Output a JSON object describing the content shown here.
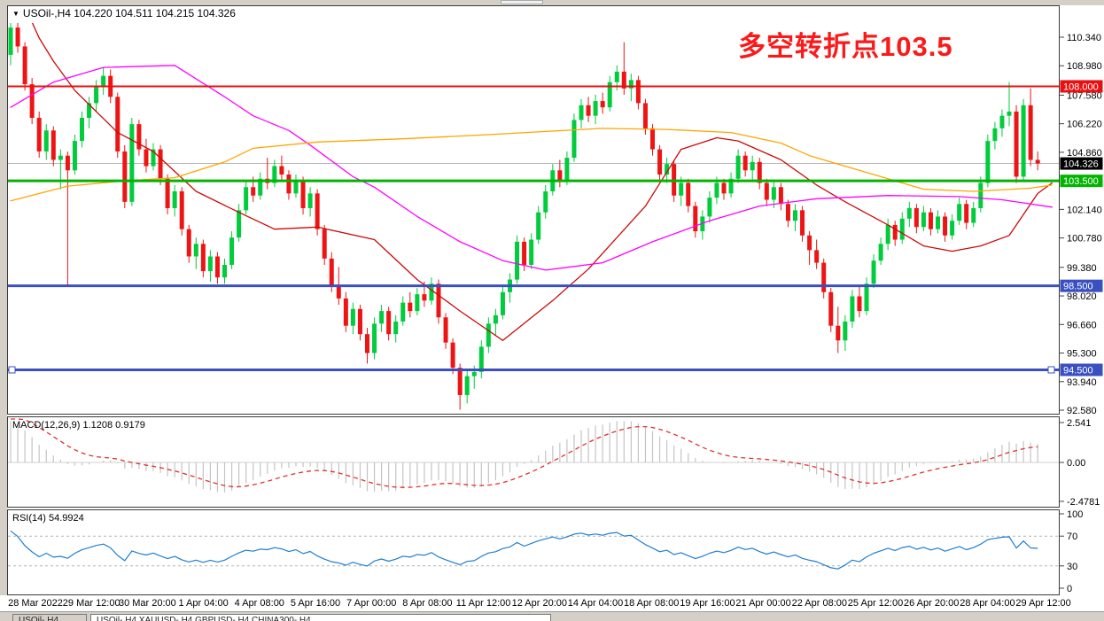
{
  "window": {
    "tabs": [
      {
        "label": "USOil-,H4",
        "active": false
      },
      {
        "label": "USOil-,H4   XAUUSD-,H4   GBPUSD-,H4   CHINA300-,H4",
        "active": true
      }
    ]
  },
  "chart": {
    "title": "USOil-,H4  104.220 104.511 104.215 104.326",
    "annotation": {
      "text": "多空转折点103.5",
      "color": "#fb1a1a"
    }
  },
  "chart_data": {
    "type": "candlestick",
    "symbol": "USOil-",
    "timeframe": "H4",
    "ohlc_display": {
      "open": "104.220",
      "high": "104.511",
      "low": "104.215",
      "close": "104.326"
    },
    "price_axis": {
      "ticks": [
        "110.340",
        "108.980",
        "107.580",
        "106.220",
        "104.860",
        "102.140",
        "100.780",
        "99.380",
        "98.020",
        "96.660",
        "95.300",
        "93.940",
        "92.580"
      ],
      "min": 92.24,
      "max": 110.94
    },
    "x_axis": {
      "labels": [
        "28 Mar 2022",
        "29 Mar 12:00",
        "30 Mar 20:00",
        "1 Apr 04:00",
        "4 Apr 08:00",
        "5 Apr 16:00",
        "7 Apr 00:00",
        "8 Apr 08:00",
        "11 Apr 12:00",
        "12 Apr 20:00",
        "14 Apr 04:00",
        "18 Apr 08:00",
        "19 Apr 16:00",
        "21 Apr 00:00",
        "22 Apr 08:00",
        "25 Apr 12:00",
        "26 Apr 20:00",
        "28 Apr 04:00",
        "29 Apr 12:00"
      ]
    },
    "hlines": [
      {
        "value": 108.0,
        "label": "108.000",
        "color": "#e81010",
        "width": 2,
        "selected": false
      },
      {
        "value": 103.5,
        "label": "103.500",
        "color": "#00b400",
        "width": 3,
        "selected": false
      },
      {
        "value": 98.5,
        "label": "98.500",
        "color": "#3a50c2",
        "width": 3,
        "selected": false
      },
      {
        "value": 94.5,
        "label": "94.500",
        "color": "#3a50c2",
        "width": 3,
        "selected": true
      }
    ],
    "current_price": {
      "value": 104.326,
      "label": "104.326",
      "line_color": "#b8b8b8",
      "badge_color": "#000000"
    },
    "style": {
      "bull": "#00cc3c",
      "bear": "#ee1414"
    },
    "candles": [
      [
        109.5,
        112.4,
        109.0,
        110.8
      ],
      [
        110.8,
        111.6,
        109.6,
        109.9
      ],
      [
        109.9,
        110.1,
        107.8,
        108.1
      ],
      [
        108.1,
        108.4,
        106.2,
        106.5
      ],
      [
        106.5,
        106.8,
        104.6,
        104.9
      ],
      [
        104.9,
        106.2,
        104.5,
        105.9
      ],
      [
        105.9,
        106.1,
        104.2,
        104.5
      ],
      [
        104.5,
        105.0,
        103.1,
        104.7
      ],
      [
        104.7,
        104.9,
        98.5,
        104.0
      ],
      [
        104.0,
        105.7,
        103.8,
        105.4
      ],
      [
        105.4,
        106.8,
        105.1,
        106.5
      ],
      [
        106.5,
        107.5,
        106.0,
        107.2
      ],
      [
        107.2,
        108.3,
        106.8,
        108.0
      ],
      [
        108.0,
        108.9,
        107.6,
        108.5
      ],
      [
        108.5,
        108.8,
        107.2,
        107.5
      ],
      [
        107.5,
        107.7,
        104.6,
        104.9
      ],
      [
        104.9,
        105.2,
        102.2,
        102.5
      ],
      [
        102.5,
        106.5,
        102.3,
        106.2
      ],
      [
        106.2,
        106.4,
        104.7,
        105.0
      ],
      [
        105.0,
        105.5,
        103.9,
        104.2
      ],
      [
        104.2,
        105.3,
        104.0,
        105.0
      ],
      [
        105.0,
        105.2,
        103.3,
        103.6
      ],
      [
        103.6,
        103.8,
        101.9,
        102.2
      ],
      [
        102.2,
        103.3,
        101.8,
        103.0
      ],
      [
        103.0,
        103.2,
        100.9,
        101.2
      ],
      [
        101.2,
        101.4,
        99.6,
        99.9
      ],
      [
        99.9,
        100.8,
        99.3,
        100.5
      ],
      [
        100.5,
        100.7,
        98.9,
        99.2
      ],
      [
        99.2,
        100.2,
        98.7,
        99.9
      ],
      [
        99.9,
        100.1,
        98.6,
        98.9
      ],
      [
        98.9,
        99.8,
        98.6,
        99.5
      ],
      [
        99.5,
        101.1,
        99.3,
        100.8
      ],
      [
        100.8,
        102.4,
        100.6,
        102.1
      ],
      [
        102.1,
        103.5,
        101.9,
        103.2
      ],
      [
        103.2,
        103.7,
        102.5,
        102.8
      ],
      [
        102.8,
        103.9,
        102.6,
        103.6
      ],
      [
        103.6,
        104.6,
        103.1,
        103.4
      ],
      [
        103.4,
        104.5,
        103.2,
        104.2
      ],
      [
        104.2,
        104.7,
        103.5,
        103.8
      ],
      [
        103.8,
        104.0,
        102.6,
        102.9
      ],
      [
        102.9,
        103.8,
        102.7,
        103.5
      ],
      [
        103.5,
        103.7,
        101.9,
        102.2
      ],
      [
        102.2,
        103.2,
        101.8,
        102.9
      ],
      [
        102.9,
        103.1,
        100.9,
        101.2
      ],
      [
        101.2,
        101.4,
        99.5,
        99.8
      ],
      [
        99.8,
        100.1,
        98.2,
        98.5
      ],
      [
        98.5,
        99.4,
        97.6,
        97.9
      ],
      [
        97.9,
        98.2,
        96.3,
        96.6
      ],
      [
        96.6,
        97.7,
        96.2,
        97.4
      ],
      [
        97.4,
        97.6,
        95.9,
        96.2
      ],
      [
        96.2,
        96.5,
        94.8,
        95.3
      ],
      [
        95.3,
        97.0,
        95.0,
        96.7
      ],
      [
        96.7,
        97.6,
        96.3,
        97.3
      ],
      [
        97.3,
        97.5,
        95.9,
        96.2
      ],
      [
        96.2,
        97.1,
        95.8,
        96.8
      ],
      [
        96.8,
        98.0,
        96.6,
        97.7
      ],
      [
        97.7,
        98.2,
        97.0,
        97.3
      ],
      [
        97.3,
        98.4,
        97.1,
        98.1
      ],
      [
        98.1,
        98.7,
        97.5,
        97.8
      ],
      [
        97.8,
        98.9,
        97.6,
        98.6
      ],
      [
        98.6,
        98.8,
        96.7,
        97.0
      ],
      [
        97.0,
        97.2,
        95.5,
        95.8
      ],
      [
        95.8,
        96.0,
        94.3,
        94.6
      ],
      [
        94.6,
        94.8,
        92.6,
        93.3
      ],
      [
        93.3,
        94.5,
        92.9,
        94.2
      ],
      [
        94.2,
        94.7,
        93.6,
        94.4
      ],
      [
        94.4,
        95.9,
        94.1,
        95.6
      ],
      [
        95.6,
        97.0,
        95.3,
        96.7
      ],
      [
        96.7,
        97.4,
        96.1,
        97.1
      ],
      [
        97.1,
        98.5,
        96.9,
        98.2
      ],
      [
        98.2,
        99.1,
        97.7,
        98.8
      ],
      [
        98.8,
        100.9,
        98.6,
        100.6
      ],
      [
        100.6,
        100.8,
        99.2,
        99.5
      ],
      [
        99.5,
        101.0,
        99.3,
        100.7
      ],
      [
        100.7,
        102.3,
        100.5,
        102.0
      ],
      [
        102.0,
        103.3,
        101.7,
        103.0
      ],
      [
        103.0,
        104.3,
        102.8,
        104.0
      ],
      [
        104.0,
        104.5,
        103.2,
        103.5
      ],
      [
        103.5,
        104.9,
        103.3,
        104.6
      ],
      [
        104.6,
        106.7,
        104.4,
        106.4
      ],
      [
        106.4,
        107.4,
        106.0,
        107.1
      ],
      [
        107.1,
        107.5,
        106.3,
        106.6
      ],
      [
        106.6,
        107.6,
        106.2,
        107.3
      ],
      [
        107.3,
        107.7,
        106.7,
        107.0
      ],
      [
        107.0,
        108.5,
        106.8,
        108.2
      ],
      [
        108.2,
        109.0,
        107.8,
        108.7
      ],
      [
        108.7,
        110.1,
        107.6,
        107.9
      ],
      [
        107.9,
        108.6,
        107.3,
        108.3
      ],
      [
        108.3,
        108.5,
        106.9,
        107.2
      ],
      [
        107.2,
        107.4,
        105.7,
        106.0
      ],
      [
        106.0,
        106.2,
        104.7,
        105.0
      ],
      [
        105.0,
        105.2,
        103.5,
        103.8
      ],
      [
        103.8,
        104.6,
        103.4,
        104.3
      ],
      [
        104.3,
        104.5,
        102.5,
        102.8
      ],
      [
        102.8,
        103.7,
        102.3,
        103.4
      ],
      [
        103.4,
        103.6,
        102.0,
        102.3
      ],
      [
        102.3,
        102.5,
        100.8,
        101.1
      ],
      [
        101.1,
        102.1,
        100.7,
        101.8
      ],
      [
        101.8,
        103.0,
        101.5,
        102.7
      ],
      [
        102.7,
        103.7,
        102.4,
        103.4
      ],
      [
        103.4,
        103.6,
        102.6,
        102.9
      ],
      [
        102.9,
        103.9,
        102.7,
        103.6
      ],
      [
        103.6,
        105.0,
        103.4,
        104.7
      ],
      [
        104.7,
        104.9,
        103.7,
        104.0
      ],
      [
        104.0,
        104.7,
        103.5,
        104.4
      ],
      [
        104.4,
        104.6,
        103.1,
        103.4
      ],
      [
        103.4,
        103.6,
        102.3,
        102.6
      ],
      [
        102.6,
        103.5,
        102.2,
        103.2
      ],
      [
        103.2,
        103.4,
        102.1,
        102.4
      ],
      [
        102.4,
        102.6,
        101.3,
        101.6
      ],
      [
        101.6,
        102.4,
        101.1,
        102.1
      ],
      [
        102.1,
        102.3,
        100.6,
        100.9
      ],
      [
        100.9,
        101.1,
        99.5,
        100.2
      ],
      [
        100.2,
        100.7,
        99.3,
        99.6
      ],
      [
        99.6,
        99.8,
        97.9,
        98.2
      ],
      [
        98.2,
        98.4,
        96.3,
        96.6
      ],
      [
        96.6,
        97.5,
        95.3,
        95.9
      ],
      [
        95.9,
        97.1,
        95.4,
        96.8
      ],
      [
        96.8,
        98.3,
        96.5,
        98.0
      ],
      [
        98.0,
        98.5,
        97.0,
        97.3
      ],
      [
        97.3,
        98.9,
        97.1,
        98.6
      ],
      [
        98.6,
        100.0,
        98.4,
        99.7
      ],
      [
        99.7,
        100.8,
        99.5,
        100.5
      ],
      [
        100.5,
        101.7,
        100.2,
        101.4
      ],
      [
        101.4,
        101.6,
        100.4,
        100.7
      ],
      [
        100.7,
        102.0,
        100.5,
        101.7
      ],
      [
        101.7,
        102.5,
        101.3,
        102.2
      ],
      [
        102.2,
        102.4,
        101.0,
        101.3
      ],
      [
        101.3,
        102.3,
        101.1,
        102.0
      ],
      [
        102.0,
        102.2,
        100.9,
        101.2
      ],
      [
        101.2,
        102.1,
        101.0,
        101.8
      ],
      [
        101.8,
        102.0,
        100.6,
        100.9
      ],
      [
        100.9,
        101.9,
        100.7,
        101.6
      ],
      [
        101.6,
        102.7,
        101.4,
        102.4
      ],
      [
        102.4,
        102.6,
        101.2,
        101.5
      ],
      [
        101.5,
        102.5,
        101.3,
        102.2
      ],
      [
        102.2,
        103.7,
        102.0,
        103.4
      ],
      [
        103.4,
        105.7,
        103.2,
        105.4
      ],
      [
        105.4,
        106.3,
        105.0,
        106.0
      ],
      [
        106.0,
        106.9,
        105.6,
        106.6
      ],
      [
        106.6,
        108.2,
        106.1,
        106.8
      ],
      [
        106.8,
        107.1,
        103.4,
        103.7
      ],
      [
        103.7,
        107.4,
        103.5,
        107.1
      ],
      [
        107.1,
        107.9,
        104.2,
        104.5
      ],
      [
        104.5,
        104.9,
        104.0,
        104.326
      ]
    ],
    "ma_lines": [
      {
        "name": "fast-ma-red",
        "color": "#cc0a0a",
        "points": [
          [
            0,
            113.5
          ],
          [
            2,
            111.8
          ],
          [
            4,
            110.3
          ],
          [
            6,
            109.2
          ],
          [
            9,
            107.8
          ],
          [
            12,
            106.8
          ],
          [
            15,
            105.8
          ],
          [
            20,
            104.9
          ],
          [
            26,
            103.0
          ],
          [
            32,
            102.0
          ],
          [
            37,
            101.2
          ],
          [
            43,
            101.3
          ],
          [
            51,
            100.7
          ],
          [
            57,
            98.8
          ],
          [
            63,
            97.3
          ],
          [
            69,
            95.9
          ],
          [
            76,
            97.8
          ],
          [
            81,
            99.3
          ],
          [
            89,
            102.3
          ],
          [
            94,
            105.0
          ],
          [
            99,
            105.55
          ],
          [
            102,
            105.4
          ],
          [
            108,
            104.5
          ],
          [
            113,
            103.3
          ],
          [
            117,
            102.5
          ],
          [
            123,
            101.4
          ],
          [
            128,
            100.4
          ],
          [
            132,
            100.15
          ],
          [
            136,
            100.4
          ],
          [
            140,
            100.9
          ],
          [
            144,
            102.9
          ],
          [
            146,
            103.4
          ]
        ]
      },
      {
        "name": "mid-ma-magenta",
        "color": "#ff00ff",
        "points": [
          [
            0,
            107.0
          ],
          [
            6,
            108.2
          ],
          [
            13,
            108.9
          ],
          [
            23,
            109.0
          ],
          [
            30,
            107.5
          ],
          [
            34,
            106.6
          ],
          [
            39,
            105.9
          ],
          [
            42,
            105.2
          ],
          [
            48,
            103.7
          ],
          [
            51,
            103.2
          ],
          [
            57,
            101.8
          ],
          [
            63,
            100.6
          ],
          [
            69,
            99.7
          ],
          [
            75,
            99.25
          ],
          [
            83,
            99.6
          ],
          [
            90,
            100.6
          ],
          [
            98,
            101.6
          ],
          [
            105,
            102.3
          ],
          [
            113,
            102.65
          ],
          [
            123,
            102.8
          ],
          [
            133,
            102.75
          ],
          [
            139,
            102.6
          ],
          [
            146,
            102.25
          ]
        ]
      },
      {
        "name": "slow-ma-orange",
        "color": "#ffa500",
        "points": [
          [
            0,
            102.55
          ],
          [
            8,
            103.25
          ],
          [
            16,
            103.5
          ],
          [
            23,
            103.65
          ],
          [
            30,
            104.4
          ],
          [
            34,
            105.05
          ],
          [
            43,
            105.35
          ],
          [
            55,
            105.5
          ],
          [
            67,
            105.7
          ],
          [
            75,
            105.85
          ],
          [
            83,
            106.0
          ],
          [
            92,
            105.95
          ],
          [
            101,
            105.8
          ],
          [
            108,
            105.3
          ],
          [
            112,
            104.7
          ],
          [
            123,
            103.6
          ],
          [
            128,
            103.1
          ],
          [
            135,
            103.0
          ],
          [
            143,
            103.15
          ],
          [
            146,
            103.3
          ]
        ]
      }
    ],
    "macd": {
      "label": "MACD(12,26,9) 1.1208 0.9179",
      "params": [
        12,
        26,
        9
      ],
      "values_display": [
        "1.1208",
        "0.9179"
      ],
      "axis": [
        "2.541",
        "0.00",
        "-2.4781"
      ],
      "bar_color": "#c4c4c4",
      "signal_color": "#e03030"
    },
    "rsi": {
      "label": "RSI(14) 54.9924",
      "period": 14,
      "value_display": "54.9924",
      "axis": [
        "100",
        "70",
        "30",
        "0"
      ],
      "levels": [
        70,
        30
      ],
      "line_color": "#1e7fd2"
    }
  }
}
